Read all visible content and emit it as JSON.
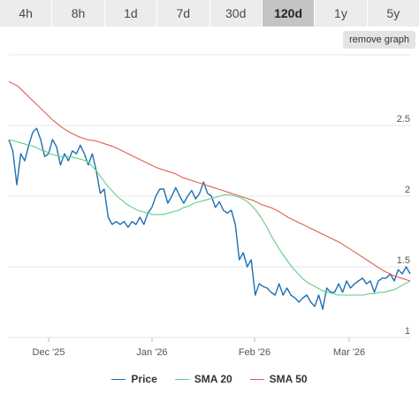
{
  "timeframe_tabs": [
    {
      "label": "4h",
      "active": false
    },
    {
      "label": "8h",
      "active": false
    },
    {
      "label": "1d",
      "active": false
    },
    {
      "label": "7d",
      "active": false
    },
    {
      "label": "30d",
      "active": false
    },
    {
      "label": "120d",
      "active": true
    },
    {
      "label": "1y",
      "active": false
    },
    {
      "label": "5y",
      "active": false
    }
  ],
  "remove_graph_label": "remove graph",
  "colors": {
    "price": "#1f6fb0",
    "sma20": "#5fcf85",
    "sma50": "#e25d4f",
    "grid": "#e6e6e6",
    "tab_active": "#c4c4c4",
    "tab_inactive": "#ececec"
  },
  "chart_data": {
    "type": "line",
    "title": "",
    "xlabel": "",
    "ylabel": "",
    "x_ticks": [
      "Dec '25",
      "Jan '26",
      "Feb '26",
      "Mar '26"
    ],
    "y_ticks": [
      1,
      1.5,
      2,
      2.5
    ],
    "ylim": [
      1,
      3.0
    ],
    "grid": true,
    "legend_position": "bottom-center",
    "series": [
      {
        "name": "Price",
        "color": "#1f6fb0",
        "values": [
          2.4,
          2.32,
          2.08,
          2.3,
          2.25,
          2.36,
          2.45,
          2.48,
          2.4,
          2.28,
          2.3,
          2.4,
          2.35,
          2.22,
          2.3,
          2.25,
          2.32,
          2.3,
          2.36,
          2.3,
          2.22,
          2.3,
          2.18,
          2.02,
          2.05,
          1.85,
          1.8,
          1.82,
          1.8,
          1.82,
          1.78,
          1.82,
          1.8,
          1.85,
          1.8,
          1.88,
          1.92,
          2.0,
          2.05,
          2.05,
          1.95,
          2.0,
          2.06,
          2.0,
          1.95,
          2.0,
          2.04,
          1.98,
          2.02,
          2.1,
          2.02,
          2.0,
          1.92,
          1.96,
          1.9,
          1.88,
          1.9,
          1.8,
          1.55,
          1.6,
          1.5,
          1.55,
          1.3,
          1.38,
          1.36,
          1.35,
          1.32,
          1.3,
          1.38,
          1.3,
          1.35,
          1.3,
          1.28,
          1.25,
          1.28,
          1.3,
          1.25,
          1.22,
          1.3,
          1.2,
          1.35,
          1.32,
          1.32,
          1.38,
          1.32,
          1.4,
          1.35,
          1.38,
          1.4,
          1.42,
          1.38,
          1.4,
          1.32,
          1.4,
          1.42,
          1.42,
          1.45,
          1.4,
          1.48,
          1.45,
          1.5,
          1.45
        ]
      },
      {
        "name": "SMA 20",
        "color": "#5fcf85",
        "values": [
          2.4,
          2.39,
          2.38,
          2.37,
          2.36,
          2.35,
          2.33,
          2.32,
          2.3,
          2.29,
          2.28,
          2.28,
          2.28,
          2.27,
          2.26,
          2.25,
          2.22,
          2.18,
          2.13,
          2.08,
          2.04,
          2.0,
          1.97,
          1.94,
          1.92,
          1.9,
          1.89,
          1.88,
          1.87,
          1.87,
          1.87,
          1.88,
          1.89,
          1.9,
          1.92,
          1.93,
          1.95,
          1.96,
          1.97,
          1.98,
          1.99,
          2.0,
          2.01,
          2.01,
          2.0,
          1.99,
          1.97,
          1.94,
          1.9,
          1.85,
          1.79,
          1.72,
          1.66,
          1.6,
          1.55,
          1.5,
          1.46,
          1.42,
          1.39,
          1.37,
          1.35,
          1.33,
          1.32,
          1.31,
          1.3,
          1.3,
          1.3,
          1.3,
          1.3,
          1.3,
          1.31,
          1.31,
          1.32,
          1.32,
          1.33,
          1.34,
          1.36,
          1.38,
          1.4
        ]
      },
      {
        "name": "SMA 50",
        "color": "#e25d4f",
        "values": [
          2.81,
          2.78,
          2.72,
          2.66,
          2.6,
          2.54,
          2.49,
          2.45,
          2.42,
          2.4,
          2.39,
          2.37,
          2.35,
          2.32,
          2.29,
          2.26,
          2.23,
          2.2,
          2.18,
          2.16,
          2.13,
          2.11,
          2.09,
          2.07,
          2.05,
          2.03,
          2.01,
          1.99,
          1.97,
          1.94,
          1.92,
          1.89,
          1.85,
          1.82,
          1.79,
          1.76,
          1.73,
          1.7,
          1.67,
          1.63,
          1.59,
          1.55,
          1.51,
          1.47,
          1.44,
          1.42,
          1.4
        ]
      }
    ]
  },
  "legend": [
    {
      "label": "Price",
      "color": "#1f6fb0"
    },
    {
      "label": "SMA 20",
      "color": "#5fcf85"
    },
    {
      "label": "SMA 50",
      "color": "#e25d4f"
    }
  ]
}
